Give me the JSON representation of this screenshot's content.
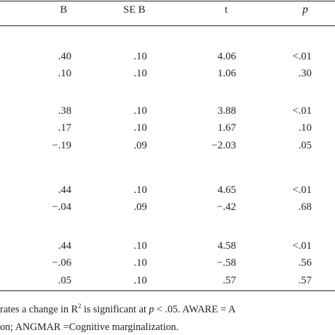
{
  "table": {
    "header": [
      "B",
      "SE B",
      "t",
      "p"
    ],
    "groups": [
      {
        "rows": [
          [
            ".40",
            ".10",
            "4.06",
            "<.01"
          ],
          [
            ".10",
            ".10",
            "1.06",
            ".30"
          ]
        ]
      },
      {
        "rows": [
          [
            ".38",
            ".10",
            "3.88",
            "<.01"
          ],
          [
            ".17",
            ".10",
            "1.67",
            ".10"
          ],
          [
            "−.19",
            ".09",
            "−2.03",
            ".05"
          ]
        ]
      },
      {
        "rows": [
          [
            ".44",
            ".10",
            "4.65",
            "<.01"
          ],
          [
            "−.04",
            ".09",
            "−.42",
            ".68"
          ]
        ]
      },
      {
        "rows": [
          [
            ".44",
            ".10",
            "4.58",
            "<.01"
          ],
          [
            "−.06",
            ".10",
            "−.58",
            ".56"
          ],
          [
            ".05",
            ".10",
            ".57",
            ".57"
          ]
        ]
      }
    ]
  },
  "footnote": {
    "line1_a": "rates a change in R",
    "line1_sup": "2",
    "line1_b": " is significant at ",
    "line1_p": "p",
    "line1_c": " < .05. AWARE = A",
    "line2": "on; ANGMAR =Cognitive marginalization."
  }
}
